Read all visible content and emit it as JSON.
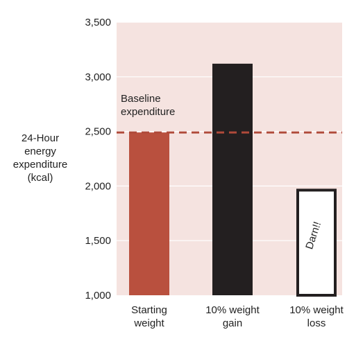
{
  "chart_data": {
    "type": "bar",
    "categories": [
      [
        "Starting",
        "weight"
      ],
      [
        "10% weight",
        "gain"
      ],
      [
        "10% weight",
        "loss"
      ]
    ],
    "values": [
      2490,
      3120,
      1975
    ],
    "bar_colors": [
      "#b9503e",
      "#231f20",
      "#ffffff"
    ],
    "bar_outline": [
      "none",
      "none",
      "#231f20"
    ],
    "ylabel": [
      "24-Hour",
      "energy",
      "expenditure",
      "(kcal)"
    ],
    "ylim": [
      1000,
      3500
    ],
    "yticks": [
      1000,
      1500,
      2000,
      2500,
      3000,
      3500
    ],
    "ytick_labels": [
      "1,000",
      "1,500",
      "2,000",
      "2,500",
      "3,000",
      "3,500"
    ],
    "grid": true,
    "plot_background": "#f5e3e0",
    "grid_color": "#ffffff",
    "reference_line": {
      "value": 2490,
      "label": [
        "Baseline",
        "expenditure"
      ],
      "color": "#b04a3a",
      "style": "dashed"
    },
    "bar_annotation": {
      "bar_index": 2,
      "text": "Darn!!"
    }
  }
}
